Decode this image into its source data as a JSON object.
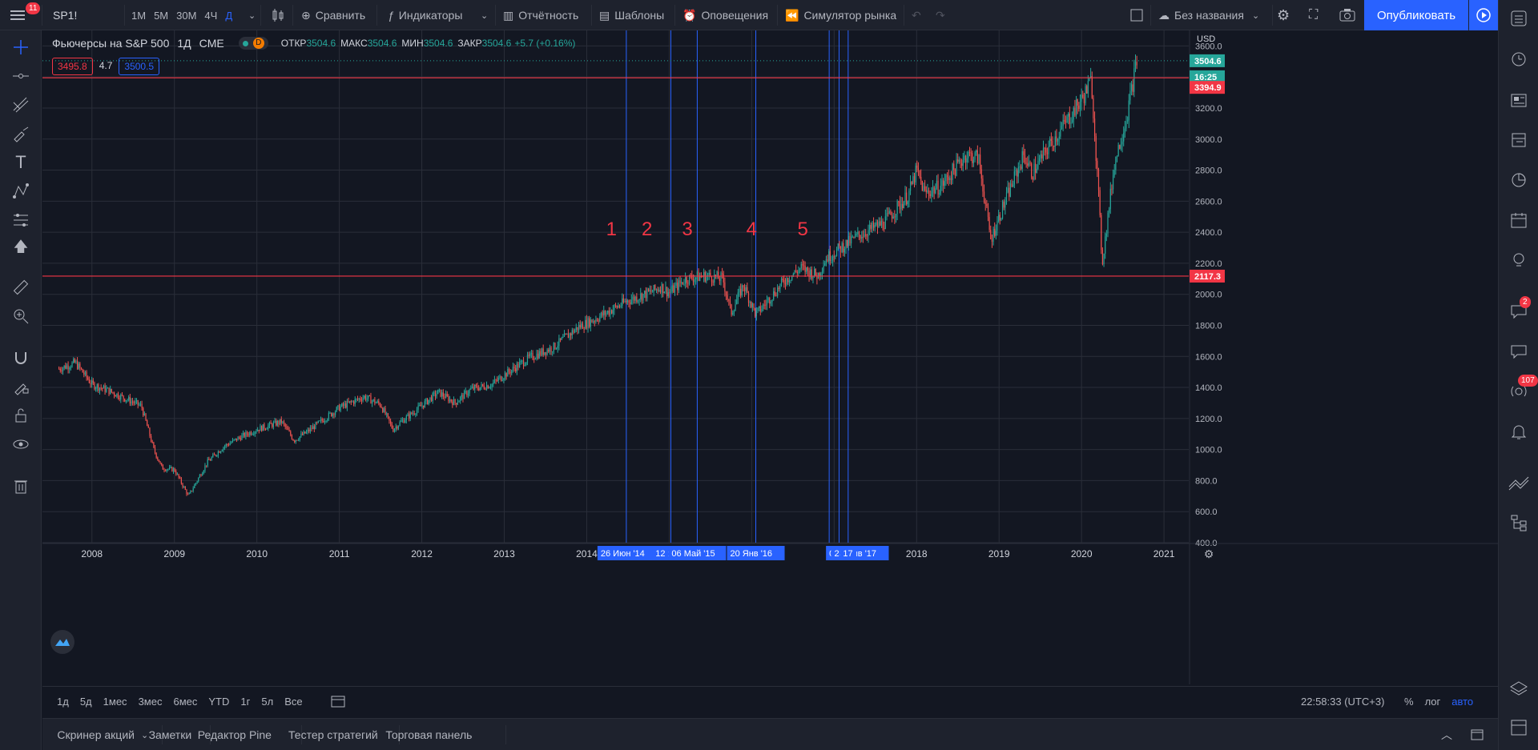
{
  "toolbar": {
    "menu_badge": "11",
    "symbol": "SP1!",
    "intervals": [
      "1М",
      "5М",
      "30М",
      "4Ч",
      "Д"
    ],
    "active_interval": "Д",
    "compare": "Сравнить",
    "indicators": "Индикаторы",
    "financials": "Отчётность",
    "templates": "Шаблоны",
    "alerts": "Оповещения",
    "replay": "Симулятор рынка",
    "layout_name": "Без названия",
    "publish": "Опубликовать"
  },
  "legend": {
    "title": "Фьючерсы на S&P 500",
    "interval": "1Д",
    "exchange": "CME",
    "badge": "D",
    "open_label": "ОТКР",
    "open": "3504.6",
    "high_label": "МАКС",
    "high": "3504.6",
    "low_label": "МИН",
    "low": "3504.6",
    "close_label": "ЗАКР",
    "close": "3504.6",
    "change": "+5.7 (+0.16%)",
    "bid": "3495.8",
    "spread": "4.7",
    "ask": "3500.5"
  },
  "price_scale": {
    "currency": "USD",
    "ticks": [
      "3600.0",
      "3400.0",
      "3200.0",
      "3000.0",
      "2800.0",
      "2600.0",
      "2400.0",
      "2200.0",
      "2000.0",
      "1800.0",
      "1600.0",
      "1400.0",
      "1200.0",
      "1000.0",
      "800.0",
      "600.0",
      "400.0"
    ],
    "last_price": "3504.6",
    "countdown": "16:25",
    "level_upper": "3394.9",
    "level_lower": "2117.3"
  },
  "time_scale": {
    "years": [
      "2008",
      "2009",
      "2010",
      "2011",
      "2012",
      "2013",
      "2014",
      "2018",
      "2019",
      "2020",
      "2021"
    ],
    "markers": [
      "26 Июн '14",
      "12 Янв",
      "06 Май '15",
      "20 Янв '16",
      "0:",
      "23 Янв '17",
      "17"
    ]
  },
  "annotations": [
    "1",
    "2",
    "3",
    "4",
    "5"
  ],
  "ranges": [
    "1д",
    "5д",
    "1мес",
    "3мес",
    "6мес",
    "YTD",
    "1г",
    "5л",
    "Все"
  ],
  "clock": "22:58:33 (UTC+3)",
  "scale_modes": [
    "%",
    "лог",
    "авто"
  ],
  "panels": [
    "Скринер акций",
    "Заметки",
    "Редактор Pine",
    "Тестер стратегий",
    "Торговая панель"
  ],
  "right_badges": {
    "chat": "2",
    "ideas": "107"
  },
  "colors": {
    "bg": "#131722",
    "panel": "#1e222d",
    "up": "#26a69a",
    "down": "#ef5350",
    "accent": "#2962ff",
    "level": "#f23645",
    "vline": "#2962ff"
  },
  "chart_data": {
    "type": "candlestick",
    "title": "Фьючерсы на S&P 500",
    "x": [
      2007.6,
      2007.8,
      2008.0,
      2008.2,
      2008.4,
      2008.6,
      2008.75,
      2008.85,
      2009.0,
      2009.17,
      2009.4,
      2009.6,
      2009.8,
      2010.0,
      2010.3,
      2010.45,
      2010.6,
      2010.8,
      2011.0,
      2011.3,
      2011.5,
      2011.65,
      2011.75,
      2011.9,
      2012.2,
      2012.4,
      2012.6,
      2012.85,
      2013.0,
      2013.3,
      2013.6,
      2013.9,
      2014.1,
      2014.3,
      2014.5,
      2014.8,
      2014.9,
      2015.0,
      2015.2,
      2015.45,
      2015.65,
      2015.75,
      2015.9,
      2016.05,
      2016.15,
      2016.4,
      2016.6,
      2016.8,
      2016.9,
      2017.0,
      2017.3,
      2017.6,
      2017.9,
      2018.0,
      2018.1,
      2018.3,
      2018.6,
      2018.75,
      2018.9,
      2019.0,
      2019.3,
      2019.4,
      2019.6,
      2019.8,
      2020.0,
      2020.12,
      2020.2,
      2020.25,
      2020.4,
      2020.55,
      2020.67
    ],
    "y": [
      1520,
      1560,
      1420,
      1380,
      1330,
      1280,
      1000,
      880,
      870,
      700,
      920,
      1020,
      1080,
      1130,
      1180,
      1060,
      1110,
      1190,
      1270,
      1340,
      1290,
      1130,
      1180,
      1240,
      1370,
      1300,
      1390,
      1420,
      1480,
      1590,
      1660,
      1790,
      1840,
      1900,
      1960,
      2020,
      2050,
      2010,
      2100,
      2120,
      2100,
      1880,
      2060,
      1870,
      1930,
      2090,
      2170,
      2120,
      2230,
      2270,
      2380,
      2460,
      2640,
      2800,
      2650,
      2700,
      2900,
      2880,
      2350,
      2500,
      2900,
      2780,
      2950,
      3100,
      3250,
      3380,
      2700,
      2200,
      2850,
      3150,
      3505
    ],
    "ylim": [
      400,
      3700
    ],
    "xlim": [
      2007.4,
      2021.3
    ],
    "levels": [
      3394.9,
      2117.3
    ],
    "vertical_markers": [
      2014.48,
      2015.02,
      2015.34,
      2016.05,
      2016.94,
      2017.06,
      2017.17
    ]
  }
}
